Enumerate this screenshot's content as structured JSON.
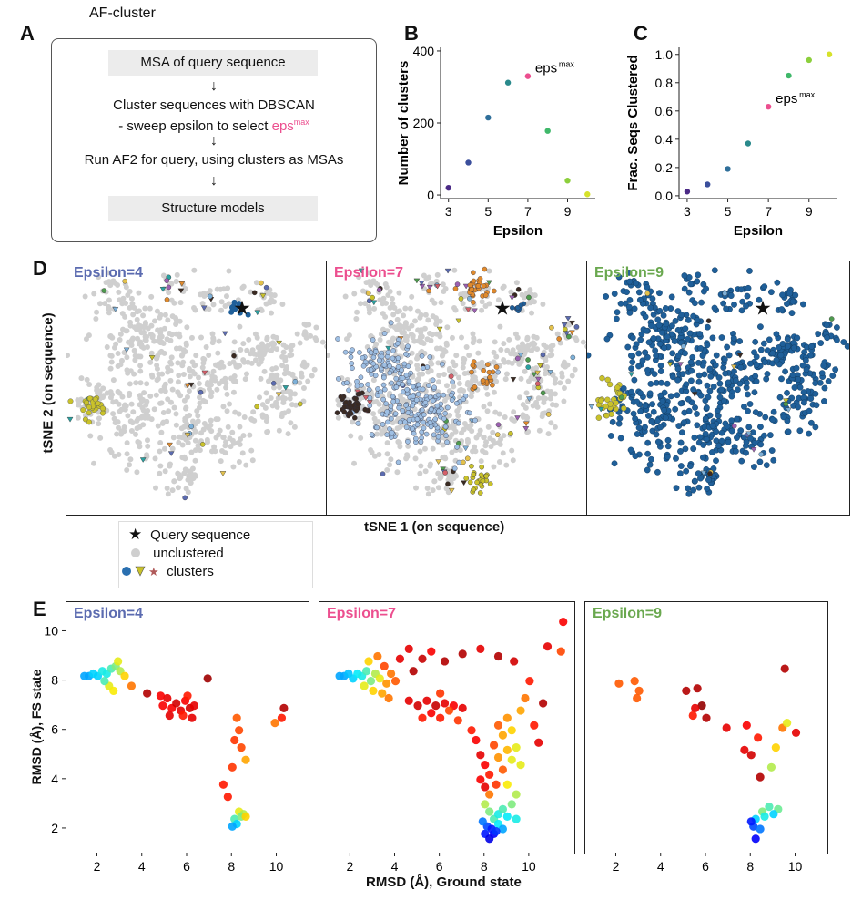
{
  "panel_a": {
    "letter": "A",
    "title": "AF-cluster",
    "step1": "MSA of query sequence",
    "step2_line1": "Cluster sequences with DBSCAN",
    "step2_line2_prefix": "- sweep epsilon to select ",
    "step2_line2_highlight": "eps",
    "step2_line2_highlight_sup": "max",
    "step3": "Run AF2 for query, using clusters as MSAs",
    "step4": "Structure models",
    "arrow": "↓",
    "highlight_color": "#ec4f8f"
  },
  "panel_b": {
    "letter": "B",
    "annotation": "eps",
    "annotation_sup": "max"
  },
  "panel_c": {
    "letter": "C",
    "annotation": "eps",
    "annotation_sup": "max"
  },
  "panel_d": {
    "letter": "D",
    "y_label": "tSNE 2 (on sequence)",
    "x_label": "tSNE 1 (on sequence)",
    "panels": [
      {
        "title": "Epsilon=4",
        "color": "#5b6bb0"
      },
      {
        "title": "Epsilon=7",
        "color": "#ec4f8f"
      },
      {
        "title": "Epsilon=9",
        "color": "#6aa84f"
      }
    ],
    "legend": {
      "query": "Query sequence",
      "unclustered": "unclustered",
      "clusters": "clusters"
    }
  },
  "panel_e": {
    "letter": "E",
    "panels": [
      {
        "title": "Epsilon=4",
        "color": "#5b6bb0"
      },
      {
        "title": "Epsilon=7",
        "color": "#ec4f8f"
      },
      {
        "title": "Epsilon=9",
        "color": "#6aa84f"
      }
    ]
  },
  "chart_data": [
    {
      "id": "B",
      "type": "scatter",
      "title": "",
      "xlabel": "Epsilon",
      "ylabel": "Number of clusters",
      "x": [
        3,
        4,
        5,
        6,
        7,
        8,
        9,
        10
      ],
      "y": [
        20,
        90,
        215,
        312,
        330,
        178,
        40,
        2
      ],
      "colors": [
        "#4b2a86",
        "#3b4f9c",
        "#2f6f9a",
        "#2a8a8c",
        "#ec4f8f",
        "#3fb86a",
        "#8ccf3c",
        "#d6e22a"
      ],
      "xlim": [
        2.6,
        10.4
      ],
      "ylim": [
        -10,
        410
      ],
      "xticks": [
        3,
        5,
        7,
        9
      ],
      "yticks": [
        0,
        200,
        400
      ],
      "highlight": {
        "x": 7,
        "label": "eps"
      }
    },
    {
      "id": "C",
      "type": "scatter",
      "title": "",
      "xlabel": "Epsilon",
      "ylabel": "Frac. Seqs Clustered",
      "x": [
        3,
        4,
        5,
        6,
        7,
        8,
        9,
        10
      ],
      "y": [
        0.03,
        0.08,
        0.19,
        0.37,
        0.63,
        0.85,
        0.96,
        1.0
      ],
      "colors": [
        "#4b2a86",
        "#3b4f9c",
        "#2f6f9a",
        "#2a8a8c",
        "#ec4f8f",
        "#3fb86a",
        "#8ccf3c",
        "#d6e22a"
      ],
      "xlim": [
        2.6,
        10.4
      ],
      "ylim": [
        -0.02,
        1.05
      ],
      "xticks": [
        3,
        5,
        7,
        9
      ],
      "yticks": [
        0.0,
        0.2,
        0.4,
        0.6,
        0.8,
        1.0
      ],
      "highlight": {
        "x": 7,
        "label": "eps"
      }
    },
    {
      "id": "E",
      "type": "scatter",
      "xlabel": "RMSD (Å), Ground state",
      "ylabel": "RMSD (Å), FS state",
      "ylim": [
        1,
        11.2
      ],
      "yticks": [
        2,
        4,
        6,
        8,
        10
      ],
      "subplots": [
        {
          "title": "Epsilon=4",
          "xlim": [
            0.6,
            11.4
          ],
          "xticks": [
            2,
            4,
            6,
            8,
            10
          ],
          "points": [
            [
              1.4,
              8.2,
              0.3
            ],
            [
              1.6,
              8.2,
              0.3
            ],
            [
              1.8,
              8.3,
              0.35
            ],
            [
              2.0,
              8.2,
              0.35
            ],
            [
              2.2,
              8.4,
              0.4
            ],
            [
              2.4,
              8.3,
              0.4
            ],
            [
              2.6,
              8.5,
              0.45
            ],
            [
              2.8,
              8.6,
              0.5
            ],
            [
              3.0,
              8.4,
              0.55
            ],
            [
              2.5,
              7.8,
              0.6
            ],
            [
              2.7,
              7.6,
              0.62
            ],
            [
              2.3,
              8.0,
              0.45
            ],
            [
              2.9,
              8.8,
              0.6
            ],
            [
              3.2,
              8.2,
              0.65
            ],
            [
              3.5,
              7.8,
              0.75
            ],
            [
              4.2,
              7.5,
              0.95
            ],
            [
              4.9,
              7.0,
              0.88
            ],
            [
              5.1,
              7.3,
              0.9
            ],
            [
              5.3,
              6.9,
              0.88
            ],
            [
              5.5,
              7.1,
              0.92
            ],
            [
              5.7,
              6.8,
              0.9
            ],
            [
              5.9,
              7.2,
              0.88
            ],
            [
              6.1,
              6.9,
              0.92
            ],
            [
              6.3,
              7.0,
              0.9
            ],
            [
              5.2,
              6.6,
              0.9
            ],
            [
              5.8,
              6.6,
              0.85
            ],
            [
              6.0,
              7.4,
              0.85
            ],
            [
              4.8,
              7.4,
              0.88
            ],
            [
              6.2,
              6.5,
              0.9
            ],
            [
              6.9,
              8.1,
              0.97
            ],
            [
              7.6,
              3.8,
              0.85
            ],
            [
              7.8,
              3.3,
              0.85
            ],
            [
              8.1,
              5.6,
              0.82
            ],
            [
              8.3,
              6.0,
              0.8
            ],
            [
              8.2,
              6.5,
              0.78
            ],
            [
              8.4,
              5.3,
              0.8
            ],
            [
              8.6,
              4.8,
              0.7
            ],
            [
              8.0,
              4.5,
              0.82
            ],
            [
              8.3,
              2.7,
              0.6
            ],
            [
              8.5,
              2.6,
              0.55
            ],
            [
              8.1,
              2.4,
              0.45
            ],
            [
              8.2,
              2.2,
              0.35
            ],
            [
              8.0,
              2.1,
              0.3
            ],
            [
              8.4,
              2.5,
              0.5
            ],
            [
              8.6,
              2.5,
              0.65
            ],
            [
              10.3,
              6.9,
              0.95
            ],
            [
              10.2,
              6.5,
              0.85
            ],
            [
              9.9,
              6.3,
              0.75
            ]
          ]
        },
        {
          "title": "Epsilon=7",
          "xlim": [
            0.6,
            12.0
          ],
          "xticks": [
            2,
            4,
            6,
            8,
            10
          ],
          "points": [
            [
              1.5,
              8.2,
              0.3
            ],
            [
              1.7,
              8.2,
              0.3
            ],
            [
              1.9,
              8.3,
              0.33
            ],
            [
              2.1,
              8.1,
              0.35
            ],
            [
              2.3,
              8.3,
              0.38
            ],
            [
              2.5,
              8.2,
              0.4
            ],
            [
              2.7,
              8.4,
              0.45
            ],
            [
              2.9,
              8.0,
              0.5
            ],
            [
              3.1,
              8.3,
              0.55
            ],
            [
              3.3,
              8.1,
              0.6
            ],
            [
              2.6,
              7.8,
              0.6
            ],
            [
              3.0,
              7.6,
              0.65
            ],
            [
              3.4,
              7.5,
              0.7
            ],
            [
              3.6,
              7.9,
              0.72
            ],
            [
              3.8,
              8.3,
              0.75
            ],
            [
              2.8,
              8.8,
              0.65
            ],
            [
              3.2,
              9.0,
              0.75
            ],
            [
              3.5,
              8.6,
              0.8
            ],
            [
              4.0,
              8.0,
              0.78
            ],
            [
              3.7,
              7.3,
              0.75
            ],
            [
              4.2,
              8.9,
              0.9
            ],
            [
              4.6,
              9.3,
              0.9
            ],
            [
              4.8,
              8.4,
              0.95
            ],
            [
              5.2,
              8.9,
              0.93
            ],
            [
              5.6,
              9.2,
              0.88
            ],
            [
              6.2,
              8.8,
              0.95
            ],
            [
              7.0,
              9.1,
              0.95
            ],
            [
              7.8,
              9.3,
              0.9
            ],
            [
              8.6,
              9.0,
              0.95
            ],
            [
              9.3,
              8.8,
              0.92
            ],
            [
              10.0,
              8.0,
              0.85
            ],
            [
              10.6,
              7.1,
              0.95
            ],
            [
              11.5,
              10.4,
              0.88
            ],
            [
              11.4,
              9.2,
              0.8
            ],
            [
              10.8,
              9.4,
              0.9
            ],
            [
              4.6,
              7.2,
              0.9
            ],
            [
              5.0,
              7.0,
              0.92
            ],
            [
              5.4,
              7.2,
              0.9
            ],
            [
              5.8,
              7.0,
              0.93
            ],
            [
              6.2,
              7.1,
              0.9
            ],
            [
              6.6,
              7.0,
              0.88
            ],
            [
              5.6,
              6.7,
              0.88
            ],
            [
              6.0,
              6.5,
              0.85
            ],
            [
              6.4,
              6.8,
              0.8
            ],
            [
              6.8,
              6.4,
              0.82
            ],
            [
              7.0,
              6.9,
              0.9
            ],
            [
              5.2,
              6.5,
              0.85
            ],
            [
              6.0,
              7.5,
              0.82
            ],
            [
              7.4,
              6.0,
              0.85
            ],
            [
              7.6,
              5.6,
              0.88
            ],
            [
              7.8,
              5.0,
              0.9
            ],
            [
              8.0,
              4.6,
              0.88
            ],
            [
              8.2,
              4.2,
              0.85
            ],
            [
              8.4,
              5.4,
              0.8
            ],
            [
              8.6,
              6.2,
              0.78
            ],
            [
              8.8,
              5.8,
              0.7
            ],
            [
              9.0,
              6.5,
              0.72
            ],
            [
              9.2,
              6.0,
              0.65
            ],
            [
              9.4,
              5.3,
              0.6
            ],
            [
              9.6,
              6.8,
              0.7
            ],
            [
              9.8,
              7.3,
              0.75
            ],
            [
              10.2,
              6.2,
              0.85
            ],
            [
              10.4,
              5.5,
              0.9
            ],
            [
              9.2,
              4.8,
              0.6
            ],
            [
              8.8,
              4.4,
              0.78
            ],
            [
              8.5,
              3.8,
              0.82
            ],
            [
              8.2,
              3.4,
              0.75
            ],
            [
              9.0,
              3.8,
              0.62
            ],
            [
              9.4,
              3.4,
              0.55
            ],
            [
              8.6,
              4.9,
              0.72
            ],
            [
              9.0,
              5.2,
              0.68
            ],
            [
              9.6,
              4.6,
              0.6
            ],
            [
              8.0,
              3.7,
              0.9
            ],
            [
              7.8,
              4.0,
              0.88
            ],
            [
              8.0,
              3.0,
              0.55
            ],
            [
              8.2,
              2.7,
              0.5
            ],
            [
              8.4,
              2.4,
              0.45
            ],
            [
              8.6,
              2.2,
              0.38
            ],
            [
              8.8,
              2.0,
              0.3
            ],
            [
              8.0,
              1.8,
              0.15
            ],
            [
              8.2,
              1.6,
              0.1
            ],
            [
              8.4,
              1.8,
              0.12
            ],
            [
              8.6,
              2.6,
              0.4
            ],
            [
              8.8,
              2.8,
              0.45
            ],
            [
              9.0,
              2.5,
              0.38
            ],
            [
              9.2,
              3.0,
              0.5
            ],
            [
              8.1,
              2.1,
              0.2
            ],
            [
              8.3,
              2.0,
              0.15
            ],
            [
              8.5,
              1.9,
              0.18
            ],
            [
              7.9,
              2.3,
              0.25
            ],
            [
              9.4,
              2.4,
              0.4
            ]
          ]
        },
        {
          "title": "Epsilon=9",
          "xlim": [
            0.6,
            11.4
          ],
          "xticks": [
            2,
            4,
            6,
            8,
            10
          ],
          "points": [
            [
              2.1,
              7.9,
              0.78
            ],
            [
              2.8,
              8.0,
              0.78
            ],
            [
              3.0,
              7.6,
              0.78
            ],
            [
              2.9,
              7.3,
              0.78
            ],
            [
              5.1,
              7.6,
              0.95
            ],
            [
              5.6,
              7.7,
              0.95
            ],
            [
              5.8,
              7.0,
              0.98
            ],
            [
              5.5,
              6.9,
              0.9
            ],
            [
              5.4,
              6.6,
              0.85
            ],
            [
              6.0,
              6.5,
              0.95
            ],
            [
              6.9,
              6.1,
              0.9
            ],
            [
              7.8,
              6.2,
              0.88
            ],
            [
              8.3,
              5.7,
              0.85
            ],
            [
              7.7,
              5.2,
              0.9
            ],
            [
              8.0,
              5.0,
              0.92
            ],
            [
              8.4,
              4.1,
              0.95
            ],
            [
              8.9,
              4.5,
              0.55
            ],
            [
              9.1,
              5.3,
              0.65
            ],
            [
              9.4,
              6.1,
              0.75
            ],
            [
              9.6,
              6.3,
              0.6
            ],
            [
              10.0,
              5.9,
              0.9
            ],
            [
              9.5,
              8.5,
              0.95
            ],
            [
              8.5,
              2.7,
              0.5
            ],
            [
              8.8,
              2.9,
              0.45
            ],
            [
              9.2,
              2.8,
              0.48
            ],
            [
              8.2,
              2.4,
              0.35
            ],
            [
              8.1,
              2.1,
              0.2
            ],
            [
              8.0,
              2.3,
              0.15
            ],
            [
              8.2,
              1.6,
              0.12
            ],
            [
              8.6,
              2.5,
              0.4
            ],
            [
              9.0,
              2.6,
              0.35
            ],
            [
              8.4,
              2.0,
              0.25
            ]
          ]
        }
      ]
    }
  ]
}
